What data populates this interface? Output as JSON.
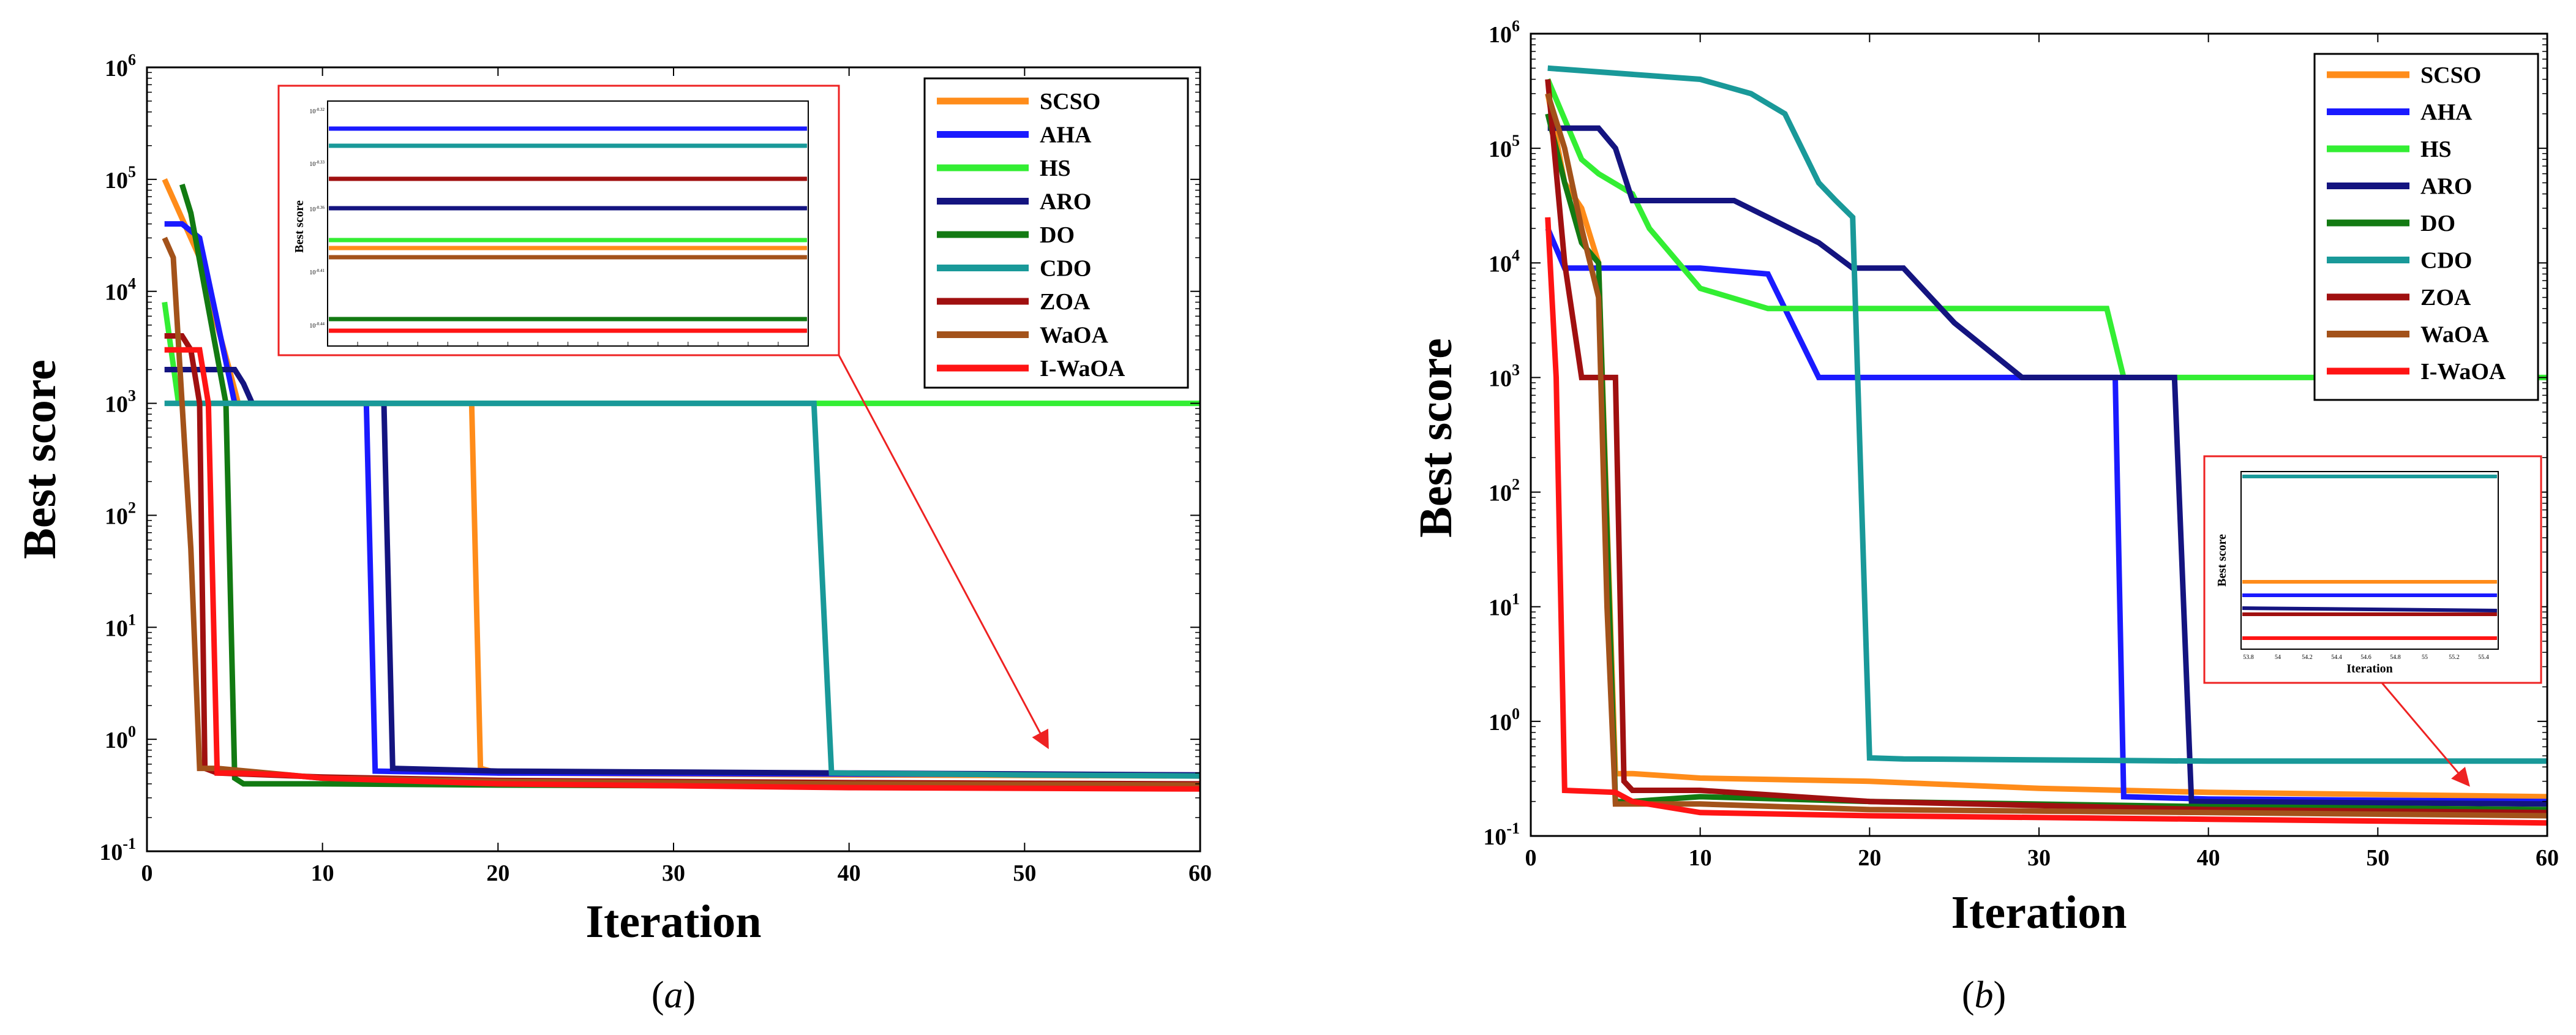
{
  "colors": {
    "SCSO": "#ff8c1a",
    "AHA": "#1a1aff",
    "HS": "#33ee33",
    "ARO": "#141480",
    "DO": "#127a12",
    "CDO": "#199999",
    "ZOA": "#a01010",
    "WaOA": "#a3521a",
    "I-WaOA": "#ff1414",
    "annotation": "#ee2222"
  },
  "chart_data": [
    {
      "type": "line",
      "panel": "a",
      "caption_open": "(",
      "caption_letter": "a",
      "caption_close": ")",
      "xlabel": "Iteration",
      "ylabel": "Best score",
      "xlim": [
        0,
        60
      ],
      "ylim_log10": [
        -1,
        6
      ],
      "yscale": "log",
      "xticks": [
        0,
        10,
        20,
        30,
        40,
        50,
        60
      ],
      "xtick_labels": [
        "0",
        "10",
        "20",
        "30",
        "40",
        "50",
        "60"
      ],
      "yticks_exp": [
        -1,
        0,
        1,
        2,
        3,
        4,
        5,
        6
      ],
      "ytick_base": "10",
      "ytick_exps": [
        "-1",
        "0",
        "1",
        "2",
        "3",
        "4",
        "5",
        "6"
      ],
      "legend_position": "top-right",
      "legend": [
        "SCSO",
        "AHA",
        "HS",
        "ARO",
        "DO",
        "CDO",
        "ZOA",
        "WaOA",
        "I-WaOA"
      ],
      "series": [
        {
          "name": "SCSO",
          "x": [
            1,
            3,
            4,
            4.7,
            5.2,
            17.5,
            18.5,
            19,
            20,
            30,
            40,
            60
          ],
          "y": [
            100000,
            20000,
            5000,
            2000,
            1000,
            1000,
            1000,
            0.55,
            0.5,
            0.49,
            0.48,
            0.47
          ]
        },
        {
          "name": "AHA",
          "x": [
            1,
            2,
            3,
            5,
            6,
            11.5,
            12.5,
            13,
            20,
            40,
            60
          ],
          "y": [
            40000,
            40000,
            30000,
            1000,
            1000,
            1000,
            1000,
            0.52,
            0.5,
            0.49,
            0.48
          ]
        },
        {
          "name": "HS",
          "x": [
            1,
            1.8,
            2.2,
            3,
            60
          ],
          "y": [
            8000,
            1000,
            1000,
            1000,
            1000
          ]
        },
        {
          "name": "ARO",
          "x": [
            1,
            5,
            5.5,
            6,
            13.2,
            13.5,
            14,
            20,
            40,
            60
          ],
          "y": [
            2000,
            2000,
            1500,
            1000,
            1000,
            1000,
            0.55,
            0.52,
            0.5,
            0.48
          ]
        },
        {
          "name": "DO",
          "x": [
            2,
            2.5,
            4.5,
            5,
            5.5,
            10,
            20,
            40,
            60
          ],
          "y": [
            90000,
            50000,
            1000,
            0.45,
            0.4,
            0.4,
            0.39,
            0.38,
            0.38
          ]
        },
        {
          "name": "CDO",
          "x": [
            1,
            10,
            20,
            30,
            37.5,
            38,
            39,
            45,
            50,
            60
          ],
          "y": [
            1000,
            1000,
            1000,
            1000,
            1000,
            1000,
            0.5,
            0.49,
            0.48,
            0.47
          ]
        },
        {
          "name": "ZOA",
          "x": [
            1,
            2,
            2.5,
            3,
            3.3,
            4,
            10,
            20,
            40,
            60
          ],
          "y": [
            4000,
            4000,
            3000,
            1000,
            0.55,
            0.5,
            0.46,
            0.43,
            0.41,
            0.4
          ]
        },
        {
          "name": "WaOA",
          "x": [
            1,
            1.5,
            2.5,
            3,
            4,
            10,
            20,
            40,
            60
          ],
          "y": [
            30000,
            20000,
            50,
            0.55,
            0.55,
            0.45,
            0.42,
            0.4,
            0.39
          ]
        },
        {
          "name": "I-WaOA",
          "x": [
            1,
            3,
            3.5,
            4,
            5,
            8,
            10,
            20,
            40,
            60
          ],
          "y": [
            3000,
            3000,
            1000,
            0.5,
            0.5,
            0.48,
            0.45,
            0.4,
            0.37,
            0.36
          ]
        }
      ],
      "inset": {
        "ylabel": "Best score",
        "tick_base": "10",
        "tick_exps": [
          "-0.32",
          "-0.33",
          "-0.36",
          "-0.41",
          "-0.44"
        ],
        "order_top_to_bottom": [
          "AHA",
          "CDO",
          "ZOA",
          "ARO",
          "HS",
          "SCSO",
          "WaOA",
          "DO",
          "I-WaOA"
        ]
      }
    },
    {
      "type": "line",
      "panel": "b",
      "caption_open": "(",
      "caption_letter": "b",
      "caption_close": ")",
      "xlabel": "Iteration",
      "ylabel": "Best score",
      "xlim": [
        0,
        60
      ],
      "ylim_log10": [
        -1,
        6
      ],
      "yscale": "log",
      "xticks": [
        0,
        10,
        20,
        30,
        40,
        50,
        60
      ],
      "xtick_labels": [
        "0",
        "10",
        "20",
        "30",
        "40",
        "50",
        "60"
      ],
      "yticks_exp": [
        -1,
        0,
        1,
        2,
        3,
        4,
        5,
        6
      ],
      "ytick_base": "10",
      "ytick_exps": [
        "-1",
        "0",
        "1",
        "2",
        "3",
        "4",
        "5",
        "6"
      ],
      "legend_position": "top-right",
      "legend": [
        "SCSO",
        "AHA",
        "HS",
        "ARO",
        "DO",
        "CDO",
        "ZOA",
        "WaOA",
        "I-WaOA"
      ],
      "series": [
        {
          "name": "SCSO",
          "x": [
            1,
            2,
            3,
            4,
            5,
            6,
            10,
            20,
            30,
            40,
            60
          ],
          "y": [
            300000,
            50000,
            30000,
            10000,
            0.35,
            0.35,
            0.32,
            0.3,
            0.26,
            0.24,
            0.22
          ]
        },
        {
          "name": "AHA",
          "x": [
            1,
            2,
            10,
            14,
            16,
            17,
            20,
            30,
            34.5,
            35,
            40,
            60
          ],
          "y": [
            20000,
            9000,
            9000,
            8000,
            2000,
            1000,
            1000,
            1000,
            1000,
            0.22,
            0.21,
            0.2
          ]
        },
        {
          "name": "HS",
          "x": [
            1,
            3,
            4,
            6,
            7,
            10,
            14,
            30,
            34,
            35,
            60
          ],
          "y": [
            400000,
            80000,
            60000,
            40000,
            20000,
            6000,
            4000,
            4000,
            4000,
            1000,
            1000
          ]
        },
        {
          "name": "ARO",
          "x": [
            1,
            4,
            5,
            6,
            12,
            14,
            17,
            19,
            22,
            25,
            29,
            30,
            37.5,
            38,
            39,
            60
          ],
          "y": [
            150000,
            150000,
            100000,
            35000,
            35000,
            25000,
            15000,
            9000,
            9000,
            3000,
            1000,
            1000,
            1000,
            1000,
            0.2,
            0.19
          ]
        },
        {
          "name": "DO",
          "x": [
            1,
            2,
            3,
            4,
            5,
            6,
            10,
            20,
            40,
            60
          ],
          "y": [
            200000,
            50000,
            15000,
            10000,
            0.2,
            0.2,
            0.22,
            0.2,
            0.18,
            0.17
          ]
        },
        {
          "name": "CDO",
          "x": [
            1,
            10,
            13,
            15,
            17,
            18,
            19,
            20,
            22,
            40,
            60
          ],
          "y": [
            500000,
            400000,
            300000,
            200000,
            50000,
            35000,
            25000,
            0.48,
            0.47,
            0.45,
            0.45
          ]
        },
        {
          "name": "ZOA",
          "x": [
            1,
            2,
            3,
            5,
            5.5,
            6,
            10,
            20,
            40,
            60
          ],
          "y": [
            400000,
            10000,
            1000,
            1000,
            0.3,
            0.25,
            0.25,
            0.2,
            0.17,
            0.16
          ]
        },
        {
          "name": "WaOA",
          "x": [
            1,
            2,
            3,
            4,
            4.5,
            5,
            10,
            20,
            40,
            60
          ],
          "y": [
            300000,
            100000,
            20000,
            5000,
            10,
            0.19,
            0.19,
            0.17,
            0.16,
            0.15
          ]
        },
        {
          "name": "I-WaOA",
          "x": [
            1,
            1.5,
            2,
            5,
            6,
            10,
            20,
            40,
            60
          ],
          "y": [
            25000,
            1000,
            0.25,
            0.24,
            0.2,
            0.16,
            0.15,
            0.14,
            0.13
          ]
        }
      ],
      "inset": {
        "ylabel": "Best score",
        "xlabel": "Iteration",
        "xtick_labels": [
          "53.8",
          "54",
          "54.2",
          "54.4",
          "54.6",
          "54.8",
          "55",
          "55.2",
          "55.4"
        ],
        "order_top_to_bottom": [
          "CDO",
          "SCSO",
          "AHA",
          "ARO",
          "ZOA",
          "I-WaOA"
        ]
      }
    }
  ]
}
